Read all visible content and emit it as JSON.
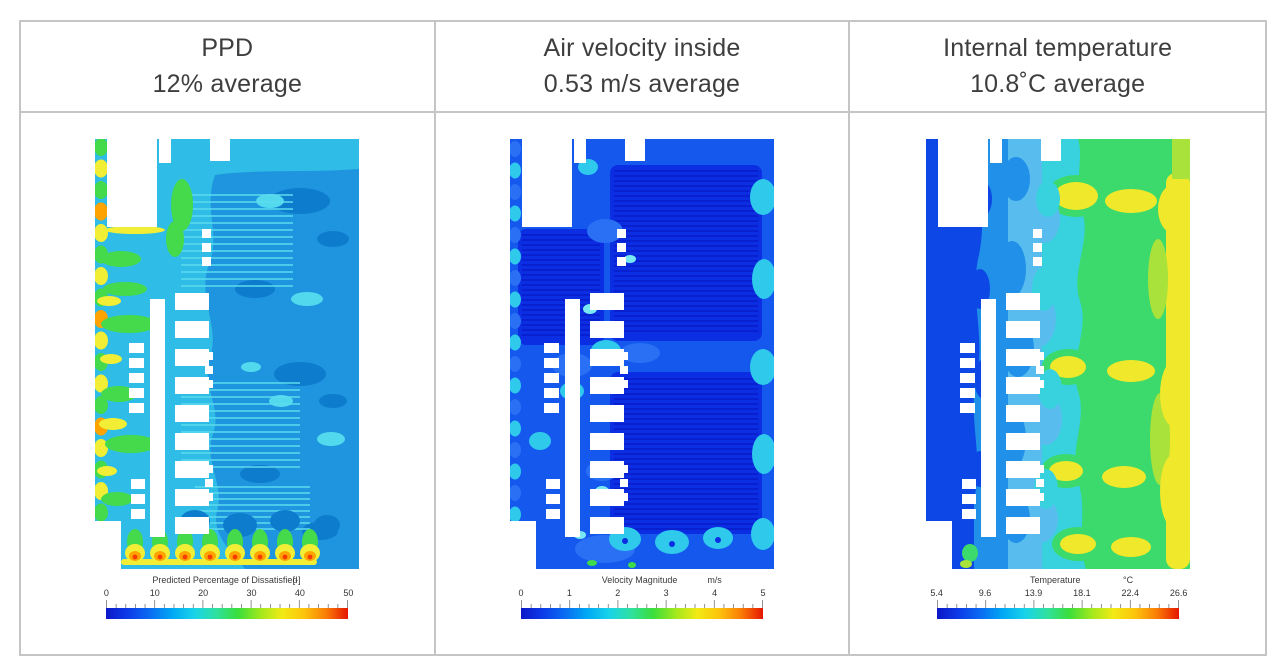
{
  "panels": [
    {
      "id": "ppd",
      "title": "PPD",
      "subtitle": "12% average",
      "legend": {
        "label": "Predicted Percentage of Dissatisfied",
        "unit": "[-]",
        "ticks": [
          "0",
          "10",
          "20",
          "30",
          "40",
          "50"
        ]
      },
      "palette": {
        "base": "#2fbce6",
        "mid": "#1e95de",
        "deep": "#0e7ccc",
        "light": "#52d9ee",
        "stripe": "#5cdcee",
        "green": "#44da4c",
        "yellow": "#f2ee35",
        "orange": "#ffa300",
        "red": "#f63c00"
      }
    },
    {
      "id": "velocity",
      "title": "Air velocity inside",
      "subtitle": "0.53 m/s average",
      "legend": {
        "label": "Velocity Magnitude",
        "unit": "m/s",
        "ticks": [
          "0",
          "1",
          "2",
          "3",
          "4",
          "5"
        ]
      },
      "palette": {
        "base": "#1558ee",
        "deep": "#0c2ee2",
        "stripe": "#0719c6",
        "mid": "#2a70f4",
        "cyan": "#2fc9ec",
        "light": "#7ae8f2",
        "green": "#3edc4a"
      }
    },
    {
      "id": "temperature",
      "title": "Internal temperature",
      "subtitle": "10.8˚C average",
      "legend": {
        "label": "Temperature",
        "unit": "°C",
        "ticks": [
          "5.4",
          "9.6",
          "13.9",
          "18.1",
          "22.4",
          "26.6"
        ]
      },
      "palette": {
        "base": "#38d2de",
        "dkblue": "#0d47e5",
        "blue": "#2090e9",
        "ltblue": "#58bdee",
        "green": "#3cd96c",
        "ygreen": "#a8e23a",
        "yellow": "#f0e82a"
      }
    }
  ],
  "colors": {
    "border": "#c5c5c5",
    "header_text": "#3e3e3e",
    "legend_text": "#3a3a3a",
    "tick": "#777777",
    "jet_gradient": [
      "#0b18c8",
      "#0d3ce8",
      "#0a6cf2",
      "#00a8f4",
      "#18d3ea",
      "#2fe0a0",
      "#3ade3b",
      "#9fe81e",
      "#f2ea15",
      "#fcc40c",
      "#fa7d06",
      "#e51500"
    ]
  },
  "chart_data": [
    {
      "type": "heatmap",
      "title": "PPD",
      "average_label": "12% average",
      "average_value": 12,
      "unit": "%",
      "colorbar": {
        "label": "Predicted Percentage of Dissatisfied",
        "unit": "[-]",
        "min": 0,
        "max": 50,
        "ticks": [
          0,
          10,
          20,
          30,
          40,
          50
        ],
        "colormap": "jet"
      },
      "description": "CFD floor-plan contour plot: interior mostly cyan-to-blue (PPD ~10-20), darker blue pockets on right (~8-12), green/yellow/orange streaks along left wall and bottom inlets (PPD ~25-50)."
    },
    {
      "type": "heatmap",
      "title": "Air velocity inside",
      "average_label": "0.53 m/s average",
      "average_value": 0.53,
      "unit": "m/s",
      "colorbar": {
        "label": "Velocity Magnitude",
        "unit": "m/s",
        "min": 0,
        "max": 5,
        "ticks": [
          0,
          1,
          2,
          3,
          4,
          5
        ],
        "colormap": "jet"
      },
      "description": "CFD floor-plan contour plot: dominated by dark/medium blue (0-1 m/s) with finely striped stagnant zones, cyan patches (~1.5 m/s) along edges and circular jets at bottom."
    },
    {
      "type": "heatmap",
      "title": "Internal temperature",
      "average_label": "10.8˚C average",
      "average_value": 10.8,
      "unit": "°C",
      "colorbar": {
        "label": "Temperature",
        "unit": "°C",
        "min": 5.4,
        "max": 26.6,
        "ticks": [
          5.4,
          9.6,
          13.9,
          18.1,
          22.4,
          26.6
        ],
        "colormap": "jet"
      },
      "description": "CFD floor-plan contour plot: cold dark-blue band (~6-8°C) on left, grading through cyan (~13°C) and green (~18°C) to yellow zones (~22-26°C) along the right side with warm plumes."
    }
  ]
}
